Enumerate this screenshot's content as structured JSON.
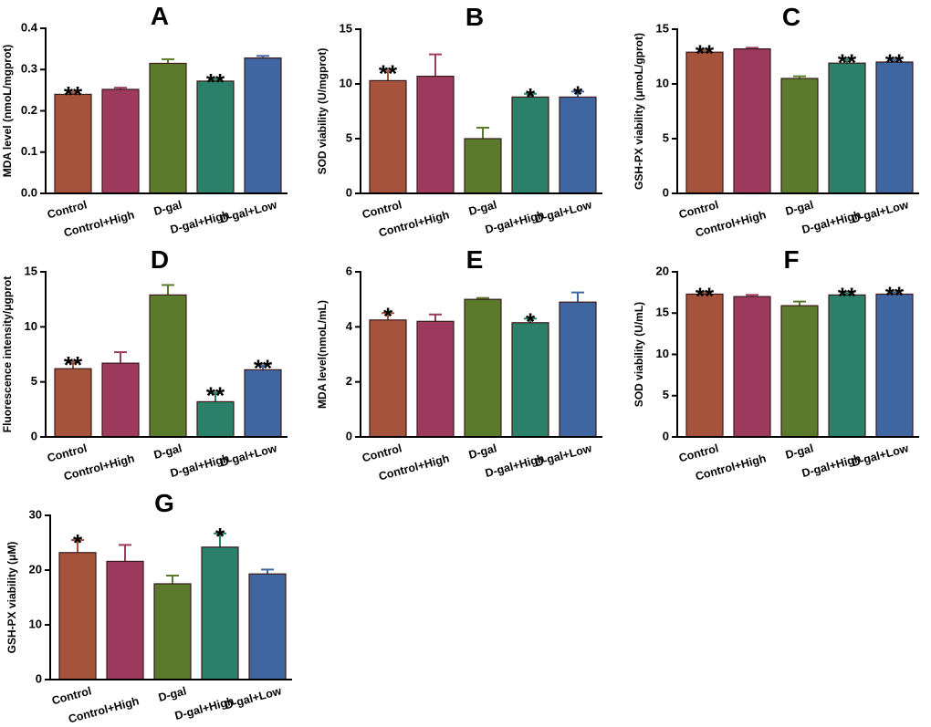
{
  "chart_data": [
    {
      "type": "bar",
      "title": "A",
      "ylabel": "MDA level (nmoL/mgprot)",
      "categories": [
        "Control",
        "Control+High",
        "D-gal",
        "D-gal+High",
        "D-gal+Low"
      ],
      "values": [
        0.24,
        0.252,
        0.315,
        0.272,
        0.328
      ],
      "errors": [
        0.005,
        0.004,
        0.01,
        0.004,
        0.005
      ],
      "annotations": [
        "**",
        null,
        null,
        "**",
        null
      ],
      "colors": [
        "#a5533a",
        "#9e3a5e",
        "#5b7a2b",
        "#2a8068",
        "#3f66a0"
      ],
      "ylim": [
        0,
        0.4
      ],
      "yticks": [
        {
          "value": 0,
          "label": "0.0"
        },
        0.1,
        0.2,
        0.3,
        0.4
      ]
    },
    {
      "type": "bar",
      "title": "B",
      "ylabel": "SOD viability (U/mgprot)",
      "categories": [
        "Control",
        "Control+High",
        "D-gal",
        "D-gal+High",
        "D-gal+Low"
      ],
      "values": [
        10.3,
        10.7,
        5.0,
        8.8,
        8.8
      ],
      "errors": [
        0.9,
        2.0,
        1.0,
        0.3,
        0.5
      ],
      "annotations": [
        "**",
        null,
        null,
        "*",
        "*"
      ],
      "colors": [
        "#a5533a",
        "#9e3a5e",
        "#5b7a2b",
        "#2a8068",
        "#3f66a0"
      ],
      "ylim": [
        0,
        15
      ],
      "yticks": [
        0,
        5,
        10,
        15
      ]
    },
    {
      "type": "bar",
      "title": "C",
      "ylabel": "GSH-PX viability (μmoL/gprot)",
      "categories": [
        "Control",
        "Control+High",
        "D-gal",
        "D-gal+High",
        "D-gal+Low"
      ],
      "values": [
        12.9,
        13.2,
        10.5,
        11.9,
        12.0
      ],
      "errors": [
        0.15,
        0.1,
        0.2,
        0.3,
        0.2
      ],
      "annotations": [
        "**",
        null,
        null,
        "**",
        "**"
      ],
      "colors": [
        "#a5533a",
        "#9e3a5e",
        "#5b7a2b",
        "#2a8068",
        "#3f66a0"
      ],
      "ylim": [
        0,
        15
      ],
      "yticks": [
        0,
        5,
        10,
        15
      ]
    },
    {
      "type": "bar",
      "title": "D",
      "ylabel": "Fluorescence intensity/μgprot",
      "categories": [
        "Control",
        "Control+High",
        "D-gal",
        "D-gal+High",
        "D-gal+Low"
      ],
      "values": [
        6.2,
        6.7,
        12.9,
        3.2,
        6.1
      ],
      "errors": [
        0.6,
        1.0,
        0.9,
        0.8,
        0.4
      ],
      "annotations": [
        "**",
        null,
        null,
        "**",
        "**"
      ],
      "colors": [
        "#a5533a",
        "#9e3a5e",
        "#5b7a2b",
        "#2a8068",
        "#3f66a0"
      ],
      "ylim": [
        0,
        15
      ],
      "yticks": [
        0,
        5,
        10,
        15
      ]
    },
    {
      "type": "bar",
      "title": "E",
      "ylabel": "MDA level(nmoL/mL)",
      "categories": [
        "Control",
        "Control+High",
        "D-gal",
        "D-gal+High",
        "D-gal+Low"
      ],
      "values": [
        4.25,
        4.2,
        5.0,
        4.15,
        4.9
      ],
      "errors": [
        0.25,
        0.25,
        0.05,
        0.15,
        0.35
      ],
      "annotations": [
        "*",
        null,
        null,
        "*",
        null
      ],
      "colors": [
        "#a5533a",
        "#9e3a5e",
        "#5b7a2b",
        "#2a8068",
        "#3f66a0"
      ],
      "ylim": [
        0,
        6
      ],
      "yticks": [
        0,
        2,
        4,
        6
      ]
    },
    {
      "type": "bar",
      "title": "F",
      "ylabel": "SOD viability (U/mL)",
      "categories": [
        "Control",
        "Control+High",
        "D-gal",
        "D-gal+High",
        "D-gal+Low"
      ],
      "values": [
        17.3,
        17.0,
        15.9,
        17.2,
        17.3
      ],
      "errors": [
        0.1,
        0.2,
        0.5,
        0.2,
        0.2
      ],
      "annotations": [
        "**",
        null,
        null,
        "**",
        "**"
      ],
      "colors": [
        "#a5533a",
        "#9e3a5e",
        "#5b7a2b",
        "#2a8068",
        "#3f66a0"
      ],
      "ylim": [
        0,
        20
      ],
      "yticks": [
        0,
        5,
        10,
        15,
        20
      ]
    },
    {
      "type": "bar",
      "title": "G",
      "ylabel": "GSH-PX viability (μM)",
      "categories": [
        "Control",
        "Control+High",
        "D-gal",
        "D-gal+High",
        "D-gal+Low"
      ],
      "values": [
        23.2,
        21.6,
        17.5,
        24.2,
        19.3
      ],
      "errors": [
        2.3,
        3.0,
        1.5,
        2.5,
        0.8
      ],
      "annotations": [
        "*",
        null,
        null,
        "*",
        null
      ],
      "colors": [
        "#a5533a",
        "#9e3a5e",
        "#5b7a2b",
        "#2a8068",
        "#3f66a0"
      ],
      "ylim": [
        0,
        30
      ],
      "yticks": [
        0,
        10,
        20,
        30
      ]
    }
  ]
}
